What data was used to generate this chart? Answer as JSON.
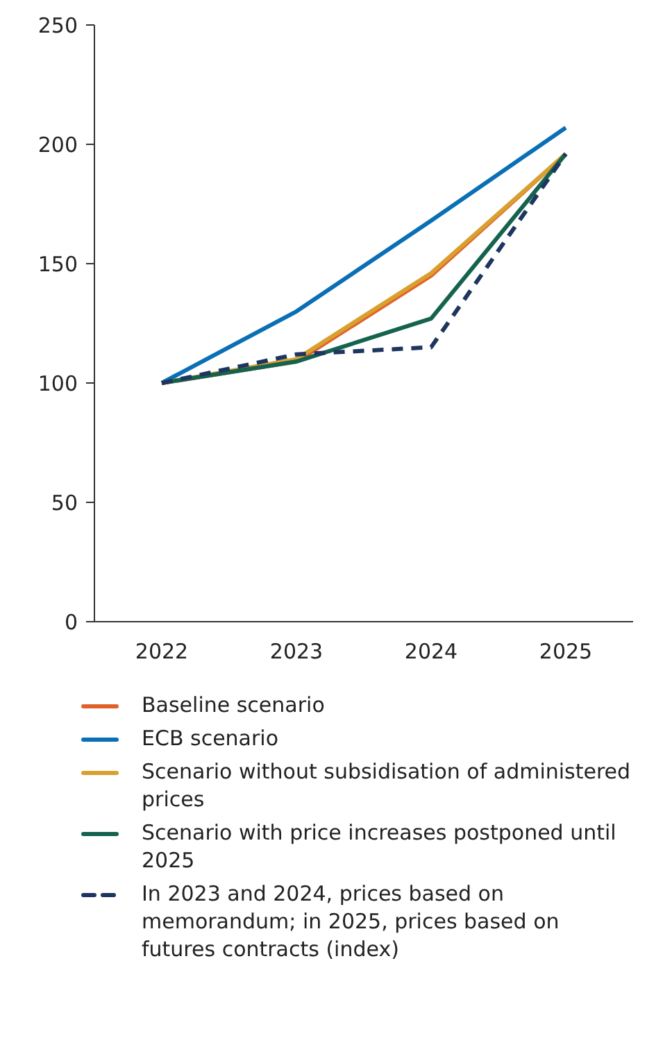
{
  "chart_data": {
    "type": "line",
    "categories": [
      "2022",
      "2023",
      "2024",
      "2025"
    ],
    "series": [
      {
        "name": "Baseline scenario",
        "color": "#e0622a",
        "values": [
          100,
          109,
          145,
          196
        ]
      },
      {
        "name": "ECB scenario",
        "color": "#0a6fb5",
        "values": [
          100,
          130,
          168,
          207
        ]
      },
      {
        "name": "Scenario without subsidisation of administered prices",
        "color": "#d9a030",
        "values": [
          100,
          110,
          146,
          196
        ]
      },
      {
        "name": "Scenario with price increases postponed until 2025",
        "color": "#15634f",
        "values": [
          100,
          109,
          127,
          196
        ]
      },
      {
        "name": "In 2023 and 2024, prices based on memorandum; in 2025, prices based on futures contracts (index)",
        "color": "#1e3560",
        "line_style": "dashed",
        "values": [
          100,
          112,
          115,
          196
        ]
      }
    ],
    "ylim": [
      0,
      250
    ],
    "yticks": [
      0,
      50,
      100,
      150,
      200,
      250
    ],
    "grid": false,
    "legend": "bottom",
    "marker": "none"
  }
}
